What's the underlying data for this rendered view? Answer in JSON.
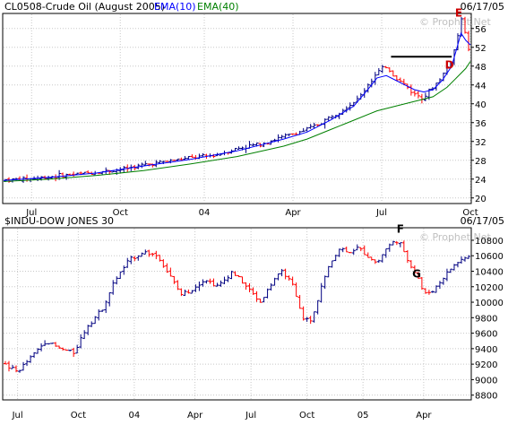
{
  "colors": {
    "background": "#ffffff",
    "grid": "#c8c8c8",
    "up_bar": "#000080",
    "down_bar": "#ff0000",
    "ema10": "#0000ff",
    "ema40": "#008000",
    "annotation_red": "#cc0000",
    "annotation_black": "#000000",
    "watermark": "#c0c0c0"
  },
  "watermark": "© Prophet.Net",
  "chart_data": [
    {
      "type": "ohlc",
      "title": "CL0508-Crude Oil (August 2005)",
      "legend": [
        {
          "name": "EMA(10)",
          "color": "#0000ff"
        },
        {
          "name": "EMA(40)",
          "color": "#008000"
        }
      ],
      "date_label": "06/17/05",
      "ylim": [
        19,
        59
      ],
      "yticks": [
        20,
        24,
        28,
        32,
        36,
        40,
        44,
        48,
        52,
        56
      ],
      "xlim": [
        0,
        100
      ],
      "xticks": [
        {
          "label": "Jul",
          "x": 6
        },
        {
          "label": "Oct",
          "x": 25
        },
        {
          "label": "04",
          "x": 43
        },
        {
          "label": "Apr",
          "x": 62
        },
        {
          "label": "Jul",
          "x": 81
        },
        {
          "label": "Oct",
          "x": 100
        }
      ],
      "price_points": [
        [
          0,
          23.8
        ],
        [
          5,
          24.0
        ],
        [
          10,
          24.5
        ],
        [
          15,
          25.0
        ],
        [
          20,
          25.5
        ],
        [
          25,
          26.0
        ],
        [
          30,
          27.0
        ],
        [
          35,
          27.8
        ],
        [
          40,
          28.5
        ],
        [
          45,
          29.0
        ],
        [
          50,
          30.5
        ],
        [
          55,
          31.5
        ],
        [
          60,
          33.0
        ],
        [
          65,
          34.5
        ],
        [
          68,
          36.0
        ],
        [
          72,
          38.5
        ],
        [
          76,
          41.0
        ],
        [
          78,
          44.0
        ],
        [
          80,
          46.5
        ],
        [
          82,
          48.0
        ],
        [
          84,
          45.5
        ],
        [
          86,
          44.0
        ],
        [
          88,
          42.0
        ],
        [
          90,
          41.5
        ],
        [
          92,
          43.5
        ],
        [
          94,
          46.0
        ],
        [
          96,
          49.5
        ],
        [
          97,
          53.0
        ],
        [
          98,
          58.0
        ],
        [
          99,
          55.0
        ],
        [
          100,
          50.0
        ]
      ],
      "ema10_points": [
        [
          0,
          23.7
        ],
        [
          10,
          24.4
        ],
        [
          20,
          25.3
        ],
        [
          30,
          26.8
        ],
        [
          40,
          28.2
        ],
        [
          50,
          30.0
        ],
        [
          60,
          32.5
        ],
        [
          65,
          34.0
        ],
        [
          70,
          36.5
        ],
        [
          75,
          39.5
        ],
        [
          78,
          43.0
        ],
        [
          80,
          45.5
        ],
        [
          82,
          46.0
        ],
        [
          84,
          45.0
        ],
        [
          86,
          44.0
        ],
        [
          88,
          43.0
        ],
        [
          90,
          42.5
        ],
        [
          92,
          43.0
        ],
        [
          94,
          45.0
        ],
        [
          96,
          48.0
        ],
        [
          97,
          51.5
        ],
        [
          98,
          55.0
        ],
        [
          99,
          53.5
        ],
        [
          100,
          52.5
        ]
      ],
      "ema40_points": [
        [
          0,
          23.5
        ],
        [
          10,
          24.0
        ],
        [
          20,
          24.8
        ],
        [
          30,
          25.8
        ],
        [
          40,
          27.2
        ],
        [
          50,
          28.8
        ],
        [
          60,
          31.0
        ],
        [
          65,
          32.5
        ],
        [
          70,
          34.5
        ],
        [
          75,
          36.5
        ],
        [
          80,
          38.5
        ],
        [
          84,
          39.5
        ],
        [
          88,
          40.5
        ],
        [
          92,
          41.5
        ],
        [
          95,
          43.5
        ],
        [
          97,
          45.5
        ],
        [
          99,
          47.5
        ],
        [
          100,
          49.0
        ]
      ],
      "annotations": [
        {
          "text": "E",
          "x": 97.5,
          "y": 58.5,
          "color": "#cc0000"
        },
        {
          "text": "D",
          "x": 95.5,
          "y": 47.5,
          "color": "#cc0000"
        }
      ],
      "resistance_line": {
        "x1": 83,
        "x2": 96,
        "y": 50
      }
    },
    {
      "type": "ohlc",
      "title": "$INDU-DOW JONES 30",
      "date_label": "06/17/05",
      "ylim": [
        8750,
        10950
      ],
      "yticks": [
        8800,
        9000,
        9200,
        9400,
        9600,
        9800,
        10000,
        10200,
        10400,
        10600,
        10800
      ],
      "xlim": [
        0,
        100
      ],
      "xticks": [
        {
          "label": "Jul",
          "x": 3
        },
        {
          "label": "Oct",
          "x": 16
        },
        {
          "label": "04",
          "x": 28
        },
        {
          "label": "Apr",
          "x": 41
        },
        {
          "label": "Jul",
          "x": 53
        },
        {
          "label": "Oct",
          "x": 65
        },
        {
          "label": "05",
          "x": 77
        },
        {
          "label": "Apr",
          "x": 90
        }
      ],
      "price_points": [
        [
          0,
          9200
        ],
        [
          3,
          9100
        ],
        [
          6,
          9300
        ],
        [
          9,
          9500
        ],
        [
          12,
          9400
        ],
        [
          15,
          9350
        ],
        [
          18,
          9700
        ],
        [
          21,
          9900
        ],
        [
          24,
          10300
        ],
        [
          27,
          10550
        ],
        [
          30,
          10650
        ],
        [
          33,
          10600
        ],
        [
          36,
          10300
        ],
        [
          38,
          10100
        ],
        [
          40,
          10150
        ],
        [
          43,
          10300
        ],
        [
          46,
          10200
        ],
        [
          49,
          10400
        ],
        [
          52,
          10200
        ],
        [
          55,
          10000
        ],
        [
          58,
          10300
        ],
        [
          60,
          10400
        ],
        [
          62,
          10200
        ],
        [
          64,
          9800
        ],
        [
          66,
          9750
        ],
        [
          68,
          10200
        ],
        [
          70,
          10500
        ],
        [
          72,
          10700
        ],
        [
          74,
          10650
        ],
        [
          76,
          10700
        ],
        [
          78,
          10600
        ],
        [
          80,
          10500
        ],
        [
          82,
          10700
        ],
        [
          84,
          10800
        ],
        [
          85,
          10750
        ],
        [
          86,
          10600
        ],
        [
          87,
          10500
        ],
        [
          88,
          10400
        ],
        [
          89,
          10300
        ],
        [
          90,
          10100
        ],
        [
          92,
          10150
        ],
        [
          94,
          10300
        ],
        [
          96,
          10450
        ],
        [
          98,
          10550
        ],
        [
          100,
          10600
        ]
      ],
      "annotations": [
        {
          "text": "F",
          "x": 85,
          "y": 10900,
          "color": "#000000"
        },
        {
          "text": "G",
          "x": 88.5,
          "y": 10320,
          "color": "#000000"
        }
      ]
    }
  ]
}
